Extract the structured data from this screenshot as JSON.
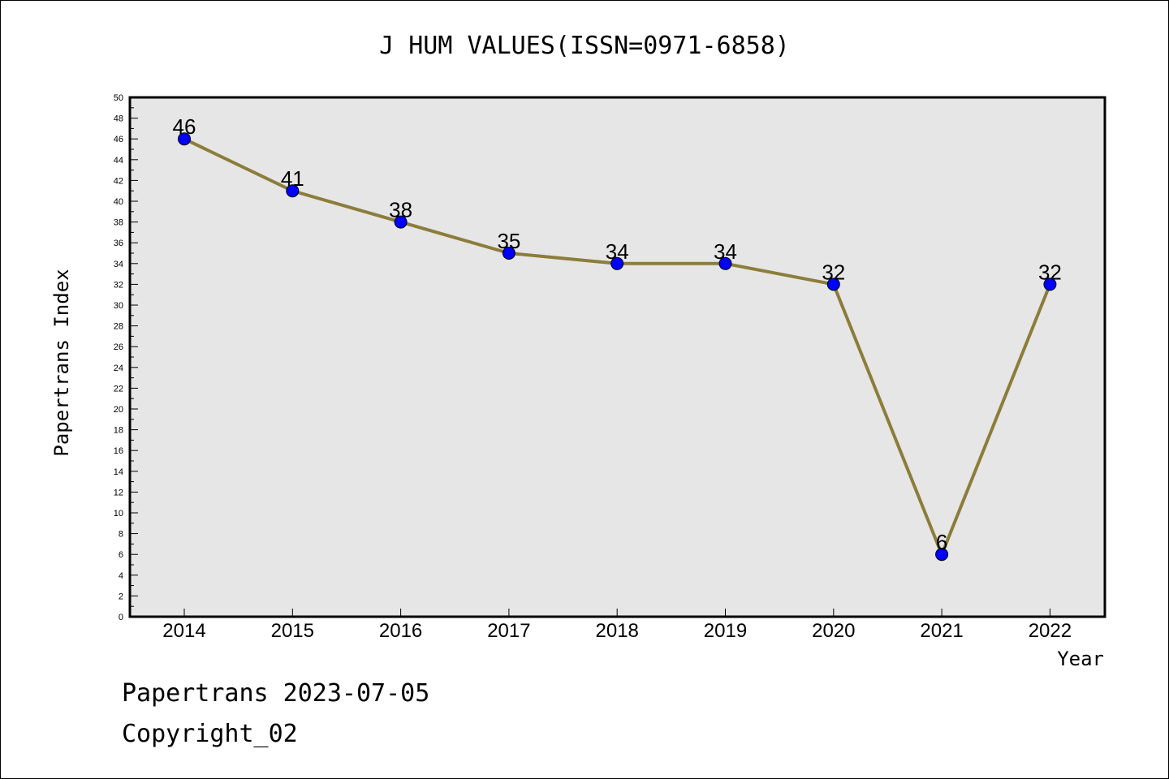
{
  "chart_data": {
    "type": "line",
    "title": "J HUM VALUES(ISSN=0971-6858)",
    "xlabel": "Year",
    "ylabel": "Papertrans Index",
    "categories": [
      "2014",
      "2015",
      "2016",
      "2017",
      "2018",
      "2019",
      "2020",
      "2021",
      "2022"
    ],
    "series": [
      {
        "values": [
          46,
          41,
          38,
          35,
          34,
          34,
          32,
          6,
          32
        ]
      }
    ],
    "ylim": [
      0,
      50
    ],
    "yticks": [
      0,
      2,
      4,
      6,
      8,
      10,
      12,
      14,
      16,
      18,
      20,
      22,
      24,
      26,
      28,
      30,
      32,
      34,
      36,
      38,
      40,
      42,
      44,
      46,
      48,
      50
    ],
    "grid": false,
    "legend": "none",
    "line_color": "#8b7d3a",
    "marker_color": "#0000ff",
    "plot_background": "#e6e6e6"
  },
  "footer": {
    "line1": "Papertrans 2023-07-05",
    "line2": "Copyright_02"
  }
}
